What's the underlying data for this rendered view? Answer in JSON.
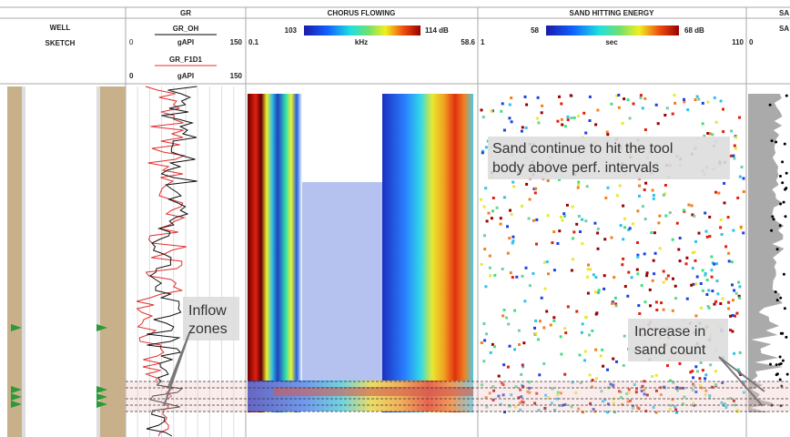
{
  "header": {
    "well": {
      "line1": "WELL",
      "line2": "SKETCH"
    },
    "gr": {
      "title": "GR",
      "curves": [
        {
          "name": "GR_OH",
          "min": 0,
          "unit": "gAPI",
          "max": 150
        },
        {
          "name": "GR_F1D1",
          "min": 0,
          "unit": "gAPI",
          "max": 150
        }
      ]
    },
    "chorus": {
      "title": "CHORUS FLOWING",
      "scale_min": 103,
      "scale_max": "114 dB",
      "min": 0.1,
      "unit": "kHz",
      "max": 58.6
    },
    "sand": {
      "title": "SAND HITTING ENERGY",
      "scale_min": 58,
      "scale_max": "68 dB",
      "min": 1,
      "unit": "sec",
      "max": 110
    },
    "cut": {
      "title": "SA",
      "curve": "SA",
      "min": 0
    }
  },
  "annotations": [
    {
      "lines": [
        "Inflow",
        "zones"
      ]
    },
    {
      "lines": [
        "Sand continue to hit the tool",
        "body above perf. intervals"
      ]
    },
    {
      "lines": [
        "Increase in",
        "sand count"
      ]
    }
  ]
}
